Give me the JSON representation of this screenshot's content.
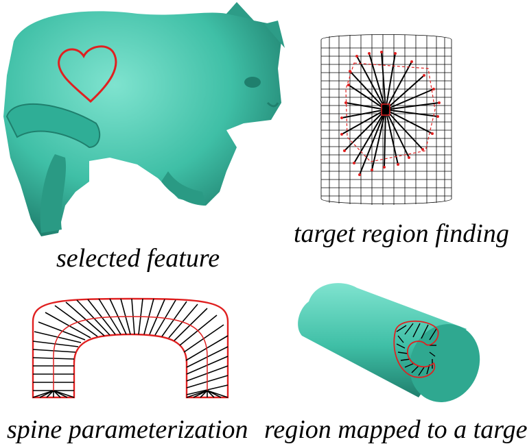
{
  "colors": {
    "model": "#3fbfa6",
    "model_shadow": "#1f7f6d",
    "feature_curve": "#e02020",
    "grid": "#000000",
    "rays": "#000000"
  },
  "panels": {
    "selected_feature": {
      "caption": "selected feature",
      "icon": "cat-model-icon"
    },
    "target_region": {
      "caption": "target region finding",
      "icon": "cylinder-grid-icon"
    },
    "spine": {
      "caption": "spine parameterization",
      "icon": "u-shape-spine-icon"
    },
    "mapped": {
      "caption": "region mapped  to a target",
      "icon": "cylinder-mapped-icon"
    }
  }
}
